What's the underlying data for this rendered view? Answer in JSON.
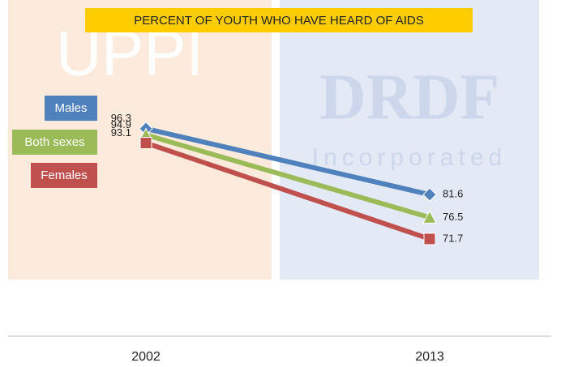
{
  "chart_data": {
    "type": "line",
    "title": "PERCENT OF YOUTH WHO HAVE HEARD OF AIDS",
    "categories": [
      "2002",
      "2013"
    ],
    "series": [
      {
        "name": "Males",
        "color": "#4f81bd",
        "marker": "diamond",
        "values": [
          96.3,
          81.6
        ]
      },
      {
        "name": "Both sexes",
        "color": "#9bbb59",
        "marker": "triangle",
        "values": [
          94.9,
          76.5
        ]
      },
      {
        "name": "Females",
        "color": "#c0504d",
        "marker": "square",
        "values": [
          93.1,
          71.7
        ]
      }
    ],
    "ylim": [
      50,
      125
    ],
    "watermarks": [
      "UPPI",
      "DRDF",
      "Incorporated"
    ]
  }
}
